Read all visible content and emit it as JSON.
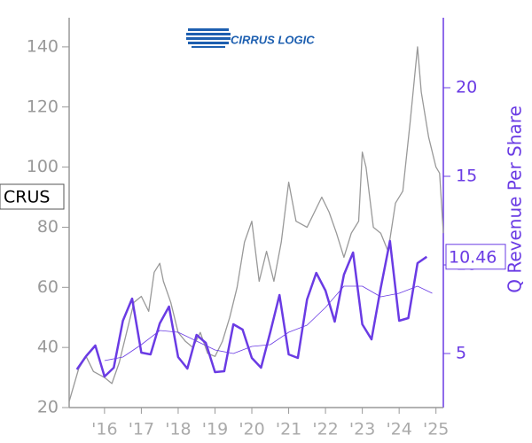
{
  "chart_data": {
    "type": "line",
    "logo_text": "CIRRUS LOGIC",
    "ticker_label": "CRUS",
    "y2_label": "Q Revenue Per Share",
    "xlim": [
      2015.04,
      2025.2
    ],
    "xticks": [
      {
        "value": 2016,
        "label": "'16"
      },
      {
        "value": 2017,
        "label": "'17"
      },
      {
        "value": 2018,
        "label": "'18"
      },
      {
        "value": 2019,
        "label": "'19"
      },
      {
        "value": 2020,
        "label": "'20"
      },
      {
        "value": 2021,
        "label": "'21"
      },
      {
        "value": 2022,
        "label": "'22"
      },
      {
        "value": 2023,
        "label": "'23"
      },
      {
        "value": 2024,
        "label": "'24"
      },
      {
        "value": 2025,
        "label": "'25"
      }
    ],
    "ylim": [
      20,
      149.7
    ],
    "yticks": [
      20,
      40,
      60,
      80,
      100,
      120,
      140
    ],
    "y2lim": [
      1.95,
      23.95
    ],
    "y2ticks": [
      5,
      10,
      15,
      20
    ],
    "series": [
      {
        "color": "#999999",
        "x": [
          2015.04,
          2015.3,
          2015.5,
          2015.7,
          2016.0,
          2016.2,
          2016.4,
          2016.6,
          2016.8,
          2017.0,
          2017.2,
          2017.35,
          2017.5,
          2017.6,
          2017.8,
          2018.0,
          2018.2,
          2018.4,
          2018.6,
          2018.8,
          2019.0,
          2019.2,
          2019.4,
          2019.6,
          2019.8,
          2020.0,
          2020.2,
          2020.4,
          2020.6,
          2020.8,
          2021.0,
          2021.2,
          2021.5,
          2021.7,
          2021.9,
          2022.1,
          2022.3,
          2022.5,
          2022.7,
          2022.9,
          2023.0,
          2023.1,
          2023.3,
          2023.5,
          2023.7,
          2023.9,
          2024.1,
          2024.3,
          2024.5,
          2024.6,
          2024.8,
          2025.0,
          2025.1,
          2025.2
        ],
        "values": [
          22,
          33,
          37,
          32,
          30,
          28,
          35,
          45,
          55,
          57,
          52,
          65,
          68,
          62,
          55,
          45,
          42,
          40,
          45,
          38,
          37,
          42,
          50,
          60,
          75,
          82,
          62,
          72,
          62,
          75,
          95,
          82,
          80,
          85,
          90,
          85,
          78,
          70,
          78,
          82,
          105,
          100,
          80,
          78,
          72,
          88,
          92,
          115,
          140,
          125,
          110,
          100,
          98,
          78
        ]
      },
      {
        "color": "#6a3be4",
        "axis": "y2",
        "x": [
          2015.25,
          2015.5,
          2015.75,
          2016.0,
          2016.25,
          2016.5,
          2016.75,
          2017.0,
          2017.25,
          2017.5,
          2017.75,
          2018.0,
          2018.25,
          2018.5,
          2018.75,
          2019.0,
          2019.25,
          2019.5,
          2019.75,
          2020.0,
          2020.25,
          2020.5,
          2020.75,
          2021.0,
          2021.25,
          2021.5,
          2021.75,
          2022.0,
          2022.25,
          2022.5,
          2022.75,
          2023.0,
          2023.25,
          2023.5,
          2023.75,
          2024.0,
          2024.25,
          2024.5,
          2024.75
        ],
        "values": [
          4.1,
          4.85,
          5.45,
          3.7,
          4.2,
          6.85,
          8.1,
          5.05,
          4.95,
          6.7,
          7.65,
          4.8,
          4.15,
          6.05,
          5.6,
          3.95,
          4.0,
          6.65,
          6.35,
          4.75,
          4.2,
          6.2,
          8.3,
          4.95,
          4.75,
          8.05,
          9.55,
          8.55,
          6.8,
          9.45,
          10.7,
          6.65,
          5.8,
          8.7,
          11.35,
          6.85,
          7.0,
          10.1,
          10.46
        ]
      },
      {
        "color": "#6a3be4",
        "axis": "y2",
        "x": [
          2016.0,
          2016.5,
          2017.0,
          2017.5,
          2018.0,
          2018.5,
          2019.0,
          2019.5,
          2020.0,
          2020.5,
          2021.0,
          2021.5,
          2022.0,
          2022.5,
          2023.0,
          2023.5,
          2024.0,
          2024.5,
          2024.9
        ],
        "values": [
          4.6,
          4.8,
          5.5,
          6.3,
          6.2,
          5.7,
          5.2,
          5.0,
          5.4,
          5.5,
          6.2,
          6.6,
          7.6,
          8.8,
          8.8,
          8.2,
          8.4,
          8.8,
          8.4
        ]
      }
    ]
  }
}
